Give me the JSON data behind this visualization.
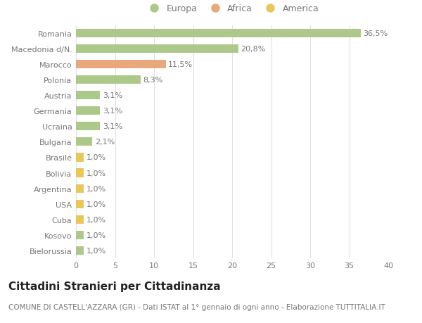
{
  "countries": [
    "Romania",
    "Macedonia d/N.",
    "Marocco",
    "Polonia",
    "Austria",
    "Germania",
    "Ucraina",
    "Bulgaria",
    "Brasile",
    "Bolivia",
    "Argentina",
    "USA",
    "Cuba",
    "Kosovo",
    "Bielorussia"
  ],
  "values": [
    36.5,
    20.8,
    11.5,
    8.3,
    3.1,
    3.1,
    3.1,
    2.1,
    1.0,
    1.0,
    1.0,
    1.0,
    1.0,
    1.0,
    1.0
  ],
  "labels": [
    "36,5%",
    "20,8%",
    "11,5%",
    "8,3%",
    "3,1%",
    "3,1%",
    "3,1%",
    "2,1%",
    "1,0%",
    "1,0%",
    "1,0%",
    "1,0%",
    "1,0%",
    "1,0%",
    "1,0%"
  ],
  "continents": [
    "Europa",
    "Europa",
    "Africa",
    "Europa",
    "Europa",
    "Europa",
    "Europa",
    "Europa",
    "America",
    "America",
    "America",
    "America",
    "America",
    "Europa",
    "Europa"
  ],
  "colors": {
    "Europa": "#adc98a",
    "Africa": "#e8a87c",
    "America": "#e8c85a"
  },
  "legend_order": [
    "Europa",
    "Africa",
    "America"
  ],
  "legend_colors": {
    "Europa": "#adc98a",
    "Africa": "#e8a87c",
    "America": "#e8c85a"
  },
  "title": "Cittadini Stranieri per Cittadinanza",
  "subtitle": "COMUNE DI CASTELL'AZZARA (GR) - Dati ISTAT al 1° gennaio di ogni anno - Elaborazione TUTTITALIA.IT",
  "xlim": [
    0,
    40
  ],
  "xticks": [
    0,
    5,
    10,
    15,
    20,
    25,
    30,
    35,
    40
  ],
  "background_color": "#ffffff",
  "grid_color": "#e0e0e0",
  "bar_height": 0.55,
  "label_fontsize": 8,
  "tick_fontsize": 8,
  "title_fontsize": 11,
  "subtitle_fontsize": 7.5,
  "text_color": "#777777",
  "title_color": "#222222"
}
